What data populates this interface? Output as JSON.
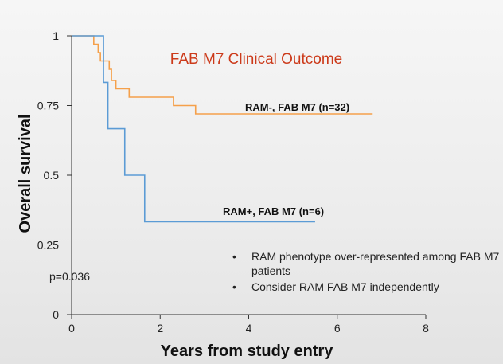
{
  "chart_data": {
    "type": "line",
    "title": "FAB M7 Clinical Outcome",
    "xlabel": "Years from study entry",
    "ylabel": "Overall survival",
    "xlim": [
      0,
      8
    ],
    "ylim": [
      0,
      1
    ],
    "x_ticks": [
      0,
      2,
      4,
      6,
      8
    ],
    "y_ticks": [
      0,
      0.25,
      0.5,
      0.75,
      1
    ],
    "y_tick_labels": [
      "0",
      "0.25",
      "0.5",
      "0.75",
      "1"
    ],
    "grid": false,
    "series": [
      {
        "name": "RAM-, FAB M7 (n=32)",
        "color": "#f5a04a",
        "x": [
          0,
          0.5,
          0.6,
          0.65,
          0.7,
          0.8,
          0.85,
          0.9,
          1.0,
          1.15,
          1.2,
          1.3,
          1.8,
          2.25,
          2.3,
          2.75,
          2.8,
          6.8
        ],
        "y": [
          1,
          0.97,
          0.94,
          0.91,
          0.91,
          0.91,
          0.88,
          0.84,
          0.81,
          0.81,
          0.81,
          0.78,
          0.78,
          0.78,
          0.75,
          0.75,
          0.72,
          0.72
        ]
      },
      {
        "name": "RAM+, FAB M7 (n=6)",
        "color": "#5b9bd5",
        "x": [
          0,
          0.72,
          0.82,
          1.2,
          1.65,
          5.5
        ],
        "y": [
          1,
          0.833,
          0.667,
          0.5,
          0.333,
          0.333
        ]
      }
    ],
    "annotations": {
      "pvalue": "p=0.036",
      "notes": [
        "RAM phenotype over-represented among FAB M7 patients",
        "Consider RAM FAB M7 independently"
      ]
    }
  }
}
